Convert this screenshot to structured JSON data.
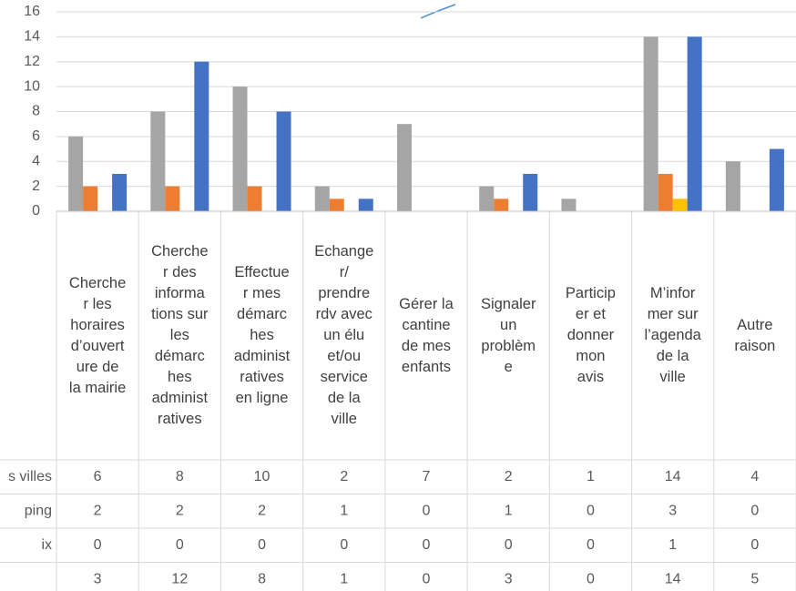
{
  "chart_data": {
    "type": "bar",
    "categories": [
      "Cherche\nr les\nhoraires\nd’ouvert\nure de\nla mairie",
      "Cherche\nr des\ninforma\ntions sur\nles\ndémarc\nhes\nadminist\nratives",
      "Effectue\nr mes\ndémarc\nhes\nadminist\nratives\nen ligne",
      "Echange\nr/\nprendre\nrdv avec\nun élu\net/ou\nservice\nde la\nville",
      "Gérer la\ncantine\nde mes\nenfants",
      "Signaler\nun\nproblèm\ne",
      "Particip\ner et\ndonner\nmon\navis",
      "M’infor\nmer sur\nl’agenda\nde la\nville",
      "Autre\nraison"
    ],
    "series": [
      {
        "name": "s villes",
        "color": "#a5a5a5",
        "values": [
          6,
          8,
          10,
          2,
          7,
          2,
          1,
          14,
          4
        ]
      },
      {
        "name": "ping",
        "color": "#ed7d31",
        "values": [
          2,
          2,
          2,
          1,
          0,
          1,
          0,
          3,
          0
        ]
      },
      {
        "name": "ix",
        "color": "#ffc000",
        "values": [
          0,
          0,
          0,
          0,
          0,
          0,
          0,
          1,
          0
        ]
      },
      {
        "name": null,
        "color": "#4472c4",
        "values": [
          3,
          12,
          8,
          1,
          0,
          3,
          0,
          14,
          5
        ]
      }
    ],
    "ylim": [
      0,
      16
    ],
    "yticks": [
      0,
      2,
      4,
      6,
      8,
      10,
      12,
      14,
      16
    ],
    "grid": true
  }
}
